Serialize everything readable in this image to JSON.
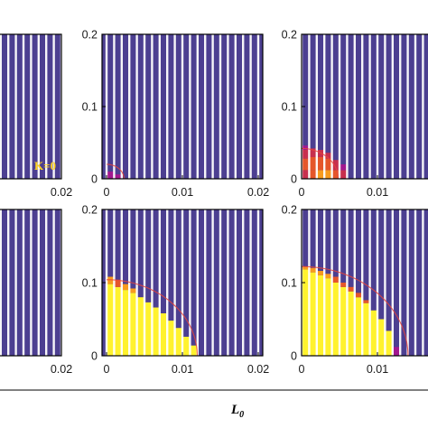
{
  "chart_data": {
    "type": "heatmap",
    "xlabel": "L",
    "xlabel_subscript": "0",
    "xlim": [
      0,
      0.023
    ],
    "ylim": [
      0,
      0.2
    ],
    "colors": {
      "background": "#4c3f91",
      "stripe": "#ffffff",
      "boundary_curve": "#e8443a",
      "levels": [
        "#4c3f91",
        "#a2188f",
        "#c72f4e",
        "#e5562a",
        "#f79b1e",
        "#fff22e"
      ]
    },
    "panels": [
      {
        "id": "top-left",
        "x_ticks": [
          "0.02"
        ],
        "x_tick_values": [
          0.02
        ],
        "y_ticks": [],
        "y_tick_values": [],
        "annotation": "K=0",
        "curve_radius": 0,
        "columns": []
      },
      {
        "id": "top-middle",
        "x_ticks": [
          "0",
          "0.01",
          "0.02"
        ],
        "x_tick_values": [
          0,
          0.01,
          0.02
        ],
        "y_ticks": [
          "0",
          "0.1",
          "0.2"
        ],
        "y_tick_values": [
          0,
          0.1,
          0.2
        ],
        "annotation": "",
        "curve_radius": 0.02,
        "columns": [
          {
            "x": 0.0005,
            "cells": [
              {
                "to": 0.01,
                "level": 1
              }
            ]
          },
          {
            "x": 0.0015,
            "cells": [
              {
                "to": 0.006,
                "level": 1
              }
            ]
          }
        ]
      },
      {
        "id": "top-right",
        "x_ticks": [
          "0",
          "0.01"
        ],
        "x_tick_values": [
          0,
          0.01
        ],
        "y_ticks": [
          "0",
          "0.1",
          "0.2"
        ],
        "y_tick_values": [
          0,
          0.1,
          0.2
        ],
        "annotation": "",
        "curve_radius": 0.042,
        "columns": [
          {
            "x": 0.0005,
            "cells": [
              {
                "to": 0.012,
                "level": 2
              },
              {
                "to": 0.028,
                "level": 3
              },
              {
                "to": 0.04,
                "level": 2
              },
              {
                "to": 0.046,
                "level": 1
              }
            ]
          },
          {
            "x": 0.0015,
            "cells": [
              {
                "to": 0.012,
                "level": 3
              },
              {
                "to": 0.03,
                "level": 3
              },
              {
                "to": 0.042,
                "level": 2
              }
            ]
          },
          {
            "x": 0.0025,
            "cells": [
              {
                "to": 0.012,
                "level": 4
              },
              {
                "to": 0.03,
                "level": 3
              },
              {
                "to": 0.04,
                "level": 2
              }
            ]
          },
          {
            "x": 0.0035,
            "cells": [
              {
                "to": 0.012,
                "level": 4
              },
              {
                "to": 0.028,
                "level": 3
              },
              {
                "to": 0.036,
                "level": 2
              }
            ]
          },
          {
            "x": 0.0045,
            "cells": [
              {
                "to": 0.012,
                "level": 3
              },
              {
                "to": 0.026,
                "level": 2
              }
            ]
          },
          {
            "x": 0.0055,
            "cells": [
              {
                "to": 0.012,
                "level": 2
              },
              {
                "to": 0.02,
                "level": 1
              }
            ]
          }
        ]
      },
      {
        "id": "bottom-left",
        "x_ticks": [
          "0.02"
        ],
        "x_tick_values": [
          0.02
        ],
        "y_ticks": [],
        "y_tick_values": [],
        "annotation": "",
        "curve_radius": 0,
        "columns": []
      },
      {
        "id": "bottom-middle",
        "x_ticks": [
          "0",
          "0.01",
          "0.02"
        ],
        "x_tick_values": [
          0,
          0.01,
          0.02
        ],
        "y_ticks": [
          "0",
          "0.1",
          "0.2"
        ],
        "y_tick_values": [
          0,
          0.1,
          0.2
        ],
        "annotation": "",
        "curve_radius": 0.104,
        "columns": [
          {
            "x": 0.0005,
            "cells": [
              {
                "to": 0.098,
                "level": 5
              },
              {
                "to": 0.108,
                "level": 4
              }
            ]
          },
          {
            "x": 0.0015,
            "cells": [
              {
                "to": 0.094,
                "level": 5
              },
              {
                "to": 0.104,
                "level": 3
              }
            ]
          },
          {
            "x": 0.0025,
            "cells": [
              {
                "to": 0.09,
                "level": 5
              },
              {
                "to": 0.098,
                "level": 4
              }
            ]
          },
          {
            "x": 0.0035,
            "cells": [
              {
                "to": 0.086,
                "level": 5
              },
              {
                "to": 0.092,
                "level": 4
              }
            ]
          },
          {
            "x": 0.0045,
            "cells": [
              {
                "to": 0.08,
                "level": 5
              }
            ]
          },
          {
            "x": 0.0055,
            "cells": [
              {
                "to": 0.073,
                "level": 5
              }
            ]
          },
          {
            "x": 0.0065,
            "cells": [
              {
                "to": 0.066,
                "level": 5
              }
            ]
          },
          {
            "x": 0.0075,
            "cells": [
              {
                "to": 0.058,
                "level": 5
              }
            ]
          },
          {
            "x": 0.0085,
            "cells": [
              {
                "to": 0.048,
                "level": 5
              }
            ]
          },
          {
            "x": 0.0095,
            "cells": [
              {
                "to": 0.038,
                "level": 5
              }
            ]
          },
          {
            "x": 0.0105,
            "cells": [
              {
                "to": 0.026,
                "level": 5
              }
            ]
          },
          {
            "x": 0.0115,
            "cells": [
              {
                "to": 0.014,
                "level": 5
              }
            ]
          }
        ]
      },
      {
        "id": "bottom-right",
        "x_ticks": [
          "0",
          "0.01"
        ],
        "x_tick_values": [
          0,
          0.01
        ],
        "y_ticks": [
          "0",
          "0.1",
          "0.2"
        ],
        "y_tick_values": [
          0,
          0.1,
          0.2
        ],
        "annotation": "",
        "curve_radius": 0.122,
        "columns": [
          {
            "x": 0.0005,
            "cells": [
              {
                "to": 0.118,
                "level": 5
              },
              {
                "to": 0.122,
                "level": 4
              }
            ]
          },
          {
            "x": 0.0015,
            "cells": [
              {
                "to": 0.114,
                "level": 5
              },
              {
                "to": 0.12,
                "level": 4
              }
            ]
          },
          {
            "x": 0.0025,
            "cells": [
              {
                "to": 0.11,
                "level": 5
              },
              {
                "to": 0.116,
                "level": 4
              }
            ]
          },
          {
            "x": 0.0035,
            "cells": [
              {
                "to": 0.106,
                "level": 5
              },
              {
                "to": 0.112,
                "level": 4
              }
            ]
          },
          {
            "x": 0.0045,
            "cells": [
              {
                "to": 0.1,
                "level": 5
              },
              {
                "to": 0.108,
                "level": 3
              }
            ]
          },
          {
            "x": 0.0055,
            "cells": [
              {
                "to": 0.094,
                "level": 5
              },
              {
                "to": 0.1,
                "level": 3
              }
            ]
          },
          {
            "x": 0.0065,
            "cells": [
              {
                "to": 0.088,
                "level": 5
              },
              {
                "to": 0.094,
                "level": 3
              }
            ]
          },
          {
            "x": 0.0075,
            "cells": [
              {
                "to": 0.08,
                "level": 5
              },
              {
                "to": 0.086,
                "level": 3
              }
            ]
          },
          {
            "x": 0.0085,
            "cells": [
              {
                "to": 0.072,
                "level": 5
              },
              {
                "to": 0.076,
                "level": 3
              }
            ]
          },
          {
            "x": 0.0095,
            "cells": [
              {
                "to": 0.062,
                "level": 5
              }
            ]
          },
          {
            "x": 0.0105,
            "cells": [
              {
                "to": 0.05,
                "level": 5
              }
            ]
          },
          {
            "x": 0.0115,
            "cells": [
              {
                "to": 0.034,
                "level": 5
              }
            ]
          },
          {
            "x": 0.0125,
            "cells": [
              {
                "to": 0.012,
                "level": 1
              }
            ]
          }
        ]
      }
    ]
  }
}
